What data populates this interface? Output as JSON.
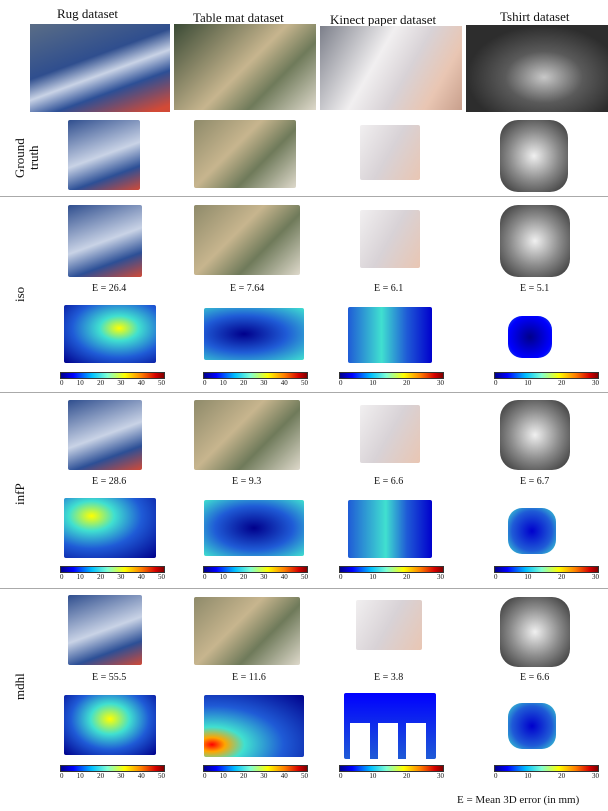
{
  "columns": [
    "Rug dataset",
    "Table mat dataset",
    "Kinect paper dataset",
    "Tshirt dataset"
  ],
  "row_labels": {
    "gt1": "Ground",
    "gt2": "truth",
    "iso": "iso",
    "infp": "infP",
    "mdh": "mdhl"
  },
  "errors": {
    "iso": [
      "E = 26.4",
      "E = 7.64",
      "E = 6.1",
      "E = 5.1"
    ],
    "infp": [
      "E = 28.6",
      "E = 9.3",
      "E = 6.6",
      "E = 6.7"
    ],
    "mdh": [
      "E = 55.5",
      "E = 11.6",
      "E = 3.8",
      "E = 6.6"
    ]
  },
  "colorbar_ticks": {
    "fifty": [
      "0",
      "10",
      "20",
      "30",
      "40",
      "50"
    ],
    "thirty": [
      "0",
      "10",
      "20",
      "30"
    ]
  },
  "footnote": "E = Mean 3D  error (in  mm)",
  "colors": {
    "rug_blue": "#3c5a9a",
    "mat_green": "#6f7a5a",
    "paper": "#e9e4e6",
    "tshirt": "#2d2d2d",
    "heat_blue": "#1f5bd6"
  }
}
